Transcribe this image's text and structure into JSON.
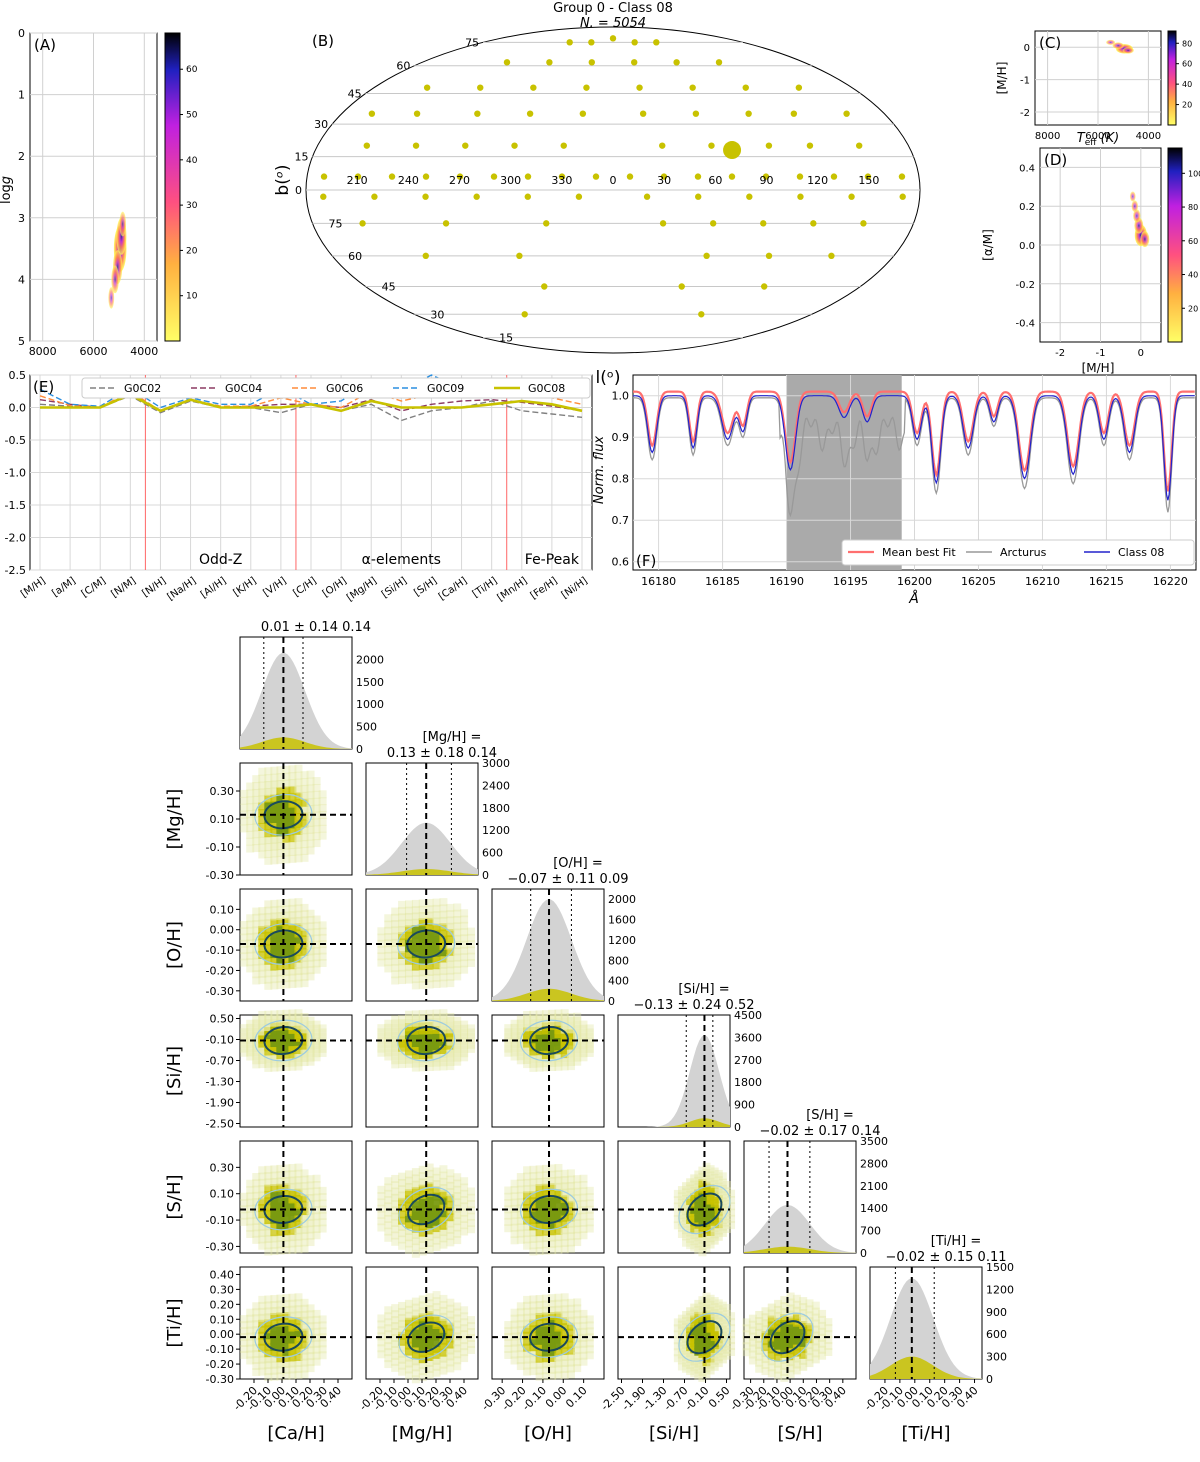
{
  "figure_title": {
    "line1": "Group 0 - Class 08",
    "line2": "N. = 5054"
  },
  "colors": {
    "class": "#c8c200",
    "class_light": "#e4e8a8",
    "gray_hist": "#d3d3d3",
    "contour_dark": "#1a4a5c",
    "contour_light": "#9ccbe0",
    "red_line": "#ff6f6f",
    "blue_line": "#2222cc",
    "gray_line": "#999999",
    "shade": "#aaaaaa"
  },
  "chart_data": [
    {
      "panel": "A",
      "type": "heatmap",
      "xlabel": "T_eff (K)",
      "ylabel": "logg",
      "xlim": [
        8500,
        3500
      ],
      "ylim": [
        5,
        0
      ],
      "xticks": [
        8000,
        6000,
        4000
      ],
      "yticks": [
        0,
        1,
        2,
        3,
        4,
        5
      ],
      "colorbar_ticks": [
        10,
        20,
        30,
        40,
        50,
        60
      ],
      "points": [
        [
          4950,
          3.5,
          1
        ],
        [
          4900,
          3.3,
          0.7
        ],
        [
          5050,
          3.8,
          0.6
        ],
        [
          5150,
          4.0,
          0.4
        ],
        [
          5300,
          4.3,
          0.2
        ],
        [
          4850,
          3.1,
          0.3
        ]
      ],
      "grid": true
    },
    {
      "panel": "B",
      "type": "scatter",
      "projection": "mollweide",
      "xlabel": "l(o)",
      "ylabel": "b(o)",
      "lon_labels": [
        "150",
        "120",
        "90",
        "60",
        "30",
        "0",
        "330",
        "300",
        "270",
        "240",
        "210"
      ],
      "lat_labels_north": [
        "75",
        "60",
        "45",
        "30",
        "15",
        "0"
      ],
      "lat_labels_south": [
        "75",
        "60",
        "45",
        "30",
        "15"
      ],
      "fields": [
        [
          60,
          75
        ],
        [
          30,
          75
        ],
        [
          0,
          78
        ],
        [
          -30,
          75
        ],
        [
          -60,
          75
        ],
        [
          100,
          62
        ],
        [
          60,
          62
        ],
        [
          20,
          62
        ],
        [
          -20,
          62
        ],
        [
          -60,
          62
        ],
        [
          -100,
          62
        ],
        [
          140,
          48
        ],
        [
          100,
          48
        ],
        [
          60,
          48
        ],
        [
          20,
          48
        ],
        [
          -20,
          48
        ],
        [
          -60,
          48
        ],
        [
          -100,
          48
        ],
        [
          -140,
          48
        ],
        [
          155,
          35
        ],
        [
          120,
          35
        ],
        [
          90,
          35
        ],
        [
          55,
          35
        ],
        [
          20,
          35
        ],
        [
          -20,
          35
        ],
        [
          -55,
          35
        ],
        [
          -90,
          35
        ],
        [
          -130,
          35
        ],
        [
          -160,
          35
        ],
        [
          150,
          20
        ],
        [
          120,
          20
        ],
        [
          95,
          20
        ],
        [
          60,
          20
        ],
        [
          30,
          20
        ],
        [
          -30,
          20
        ],
        [
          -60,
          20
        ],
        [
          -90,
          20
        ],
        [
          -120,
          20
        ],
        [
          -150,
          20
        ],
        [
          170,
          6
        ],
        [
          150,
          6
        ],
        [
          130,
          6
        ],
        [
          110,
          6
        ],
        [
          90,
          6
        ],
        [
          70,
          6
        ],
        [
          50,
          6
        ],
        [
          30,
          6
        ],
        [
          10,
          6
        ],
        [
          -10,
          6
        ],
        [
          -30,
          6
        ],
        [
          -50,
          6
        ],
        [
          -70,
          6
        ],
        [
          -90,
          6
        ],
        [
          -110,
          6
        ],
        [
          -130,
          6
        ],
        [
          -150,
          6
        ],
        [
          -170,
          6
        ],
        [
          170,
          -3
        ],
        [
          140,
          -3
        ],
        [
          110,
          -3
        ],
        [
          80,
          -3
        ],
        [
          50,
          -3
        ],
        [
          20,
          -3
        ],
        [
          -20,
          -3
        ],
        [
          -50,
          -3
        ],
        [
          -80,
          -3
        ],
        [
          -110,
          -3
        ],
        [
          -140,
          -3
        ],
        [
          -170,
          -3
        ],
        [
          150,
          -15
        ],
        [
          120,
          -15
        ],
        [
          90,
          -15
        ],
        [
          60,
          -15
        ],
        [
          30,
          -15
        ],
        [
          -40,
          -15
        ],
        [
          -100,
          -15
        ],
        [
          -150,
          -15
        ],
        [
          140,
          -30
        ],
        [
          100,
          -30
        ],
        [
          60,
          -30
        ],
        [
          -60,
          -30
        ],
        [
          -120,
          -30
        ],
        [
          110,
          -45
        ],
        [
          50,
          -45
        ],
        [
          -50,
          -45
        ],
        [
          80,
          -60
        ],
        [
          -80,
          -60
        ]
      ],
      "cluster": [
        72,
        18
      ]
    },
    {
      "panel": "C",
      "type": "heatmap",
      "xlabel": "T_eff (K)",
      "ylabel": "[M/H]",
      "xlim": [
        8500,
        3500
      ],
      "ylim": [
        -2.4,
        0.5
      ],
      "xticks": [
        8000,
        6000,
        4000
      ],
      "yticks": [
        0,
        -1,
        -2
      ],
      "colorbar_ticks": [
        20,
        40,
        60,
        80
      ],
      "points": [
        [
          4950,
          -0.05,
          1
        ],
        [
          5200,
          0.05,
          0.5
        ],
        [
          5500,
          0.15,
          0.3
        ],
        [
          4800,
          -0.1,
          0.5
        ]
      ],
      "grid": true
    },
    {
      "panel": "D",
      "type": "heatmap",
      "xlabel": "[M/H]",
      "ylabel": "[α/M]",
      "xlim": [
        -2.5,
        0.5
      ],
      "ylim": [
        -0.5,
        0.5
      ],
      "xticks": [
        -2,
        -1,
        0
      ],
      "yticks": [
        0.4,
        0.2,
        0.0,
        -0.2,
        -0.4
      ],
      "colorbar_ticks": [
        20,
        40,
        60,
        80,
        100
      ],
      "points": [
        [
          0.0,
          0.05,
          1
        ],
        [
          -0.05,
          0.1,
          0.6
        ],
        [
          -0.1,
          0.15,
          0.4
        ],
        [
          -0.15,
          0.2,
          0.3
        ],
        [
          0.1,
          0.03,
          0.6
        ],
        [
          -0.2,
          0.25,
          0.2
        ]
      ],
      "grid": true
    },
    {
      "panel": "E",
      "type": "line",
      "categories": [
        "[M/H]",
        "[a/M]",
        "[C/M]",
        "[N/M]",
        "[N/H]",
        "[Na/H]",
        "[Al/H]",
        "[K/H]",
        "[V/H]",
        "[C/H]",
        "[O/H]",
        "[Mg/H]",
        "[Si/H]",
        "[S/H]",
        "[Ca/H]",
        "[Ti/H]",
        "[Mn/H]",
        "[Fe/H]",
        "[Ni/H]"
      ],
      "ylim": [
        -2.5,
        0.5
      ],
      "yticks": [
        0.5,
        0.0,
        -0.5,
        -1.0,
        -1.5,
        -2.0,
        -2.5
      ],
      "group_labels": [
        "Odd-Z",
        "α-elements",
        "Fe-Peak"
      ],
      "series": [
        {
          "name": "G0C02",
          "values": [
            0.05,
            0.02,
            0.0,
            0.18,
            -0.08,
            0.1,
            0.0,
            0.0,
            -0.08,
            0.05,
            -0.05,
            0.05,
            -0.2,
            -0.05,
            0.0,
            0.1,
            -0.05,
            -0.1,
            -0.15
          ],
          "color": "#808080"
        },
        {
          "name": "G0C04",
          "values": [
            0.12,
            0.05,
            0.0,
            0.22,
            -0.05,
            0.12,
            0.0,
            0.02,
            0.05,
            0.05,
            0.0,
            0.12,
            -0.05,
            0.05,
            0.1,
            0.12,
            0.08,
            0.02,
            -0.05
          ],
          "color": "#8b3a62"
        },
        {
          "name": "G0C06",
          "values": [
            0.18,
            0.03,
            0.0,
            0.25,
            -0.05,
            0.12,
            0.02,
            0.02,
            0.15,
            0.05,
            0.0,
            0.25,
            0.1,
            0.2,
            0.15,
            0.15,
            0.2,
            0.15,
            0.05
          ],
          "color": "#ff8c3a"
        },
        {
          "name": "G0C09",
          "values": [
            0.28,
            0.05,
            0.02,
            0.3,
            0.0,
            0.15,
            0.05,
            0.05,
            0.3,
            0.05,
            0.1,
            0.4,
            0.25,
            0.5,
            0.3,
            0.25,
            0.3,
            0.25,
            0.15
          ],
          "color": "#2b8fe0"
        },
        {
          "name": "G0C08",
          "values": [
            0.0,
            0.0,
            0.0,
            0.2,
            -0.05,
            0.12,
            0.0,
            0.0,
            0.0,
            0.05,
            -0.05,
            0.1,
            0.0,
            0.0,
            0.0,
            0.05,
            0.1,
            0.05,
            -0.05
          ],
          "color": "#c8c200"
        }
      ]
    },
    {
      "panel": "F",
      "type": "line",
      "xlabel": "Å",
      "ylabel": "Norm. flux",
      "xlim": [
        16178,
        16222
      ],
      "ylim": [
        0.58,
        1.05
      ],
      "xticks": [
        16180,
        16185,
        16190,
        16195,
        16200,
        16205,
        16210,
        16215,
        16220
      ],
      "yticks": [
        1.0,
        0.9,
        0.8,
        0.7,
        0.6
      ],
      "shaded_range": [
        16190,
        16199
      ],
      "legend_loc": "lower right",
      "series": [
        {
          "name": "Mean best Fit"
        },
        {
          "name": "Arcturus"
        },
        {
          "name": "Class 08"
        }
      ]
    },
    {
      "panel": "corner",
      "type": "scatter",
      "variables": [
        {
          "label": "[Ca/H]",
          "median": 0.01,
          "err_plus": 0.14,
          "err_minus": 0.14,
          "lo": -0.3,
          "hi": 0.5,
          "ticks": [
            -0.2,
            -0.1,
            0.0,
            0.1,
            0.2,
            0.3,
            0.4
          ],
          "tick_labels": [
            "-0.20",
            "-0.10",
            "0.00",
            "0.10",
            "0.20",
            "0.30",
            "0.40"
          ],
          "hist_ticks": [
            500,
            1000,
            1500,
            2000
          ],
          "hist_max": 2500,
          "gray_peak": 2150,
          "class_peak": 260,
          "title_line1": "",
          "title_line2": "0.01 ± 0.14 0.14"
        },
        {
          "label": "[Mg/H]",
          "median": 0.13,
          "err_plus": 0.18,
          "err_minus": 0.14,
          "lo": -0.3,
          "hi": 0.5,
          "ticks": [
            -0.2,
            -0.1,
            0.0,
            0.1,
            0.2,
            0.3,
            0.4
          ],
          "tick_labels": [
            "-0.20",
            "-0.10",
            "0.00",
            "0.10",
            "0.20",
            "0.30",
            "0.40"
          ],
          "axis_ticks": [
            -0.3,
            -0.1,
            0.1,
            0.3
          ],
          "axis_tick_labels": [
            "-0.30",
            "-0.10",
            "0.10",
            "0.30"
          ],
          "hist_ticks": [
            600,
            1200,
            1800,
            2400,
            3000
          ],
          "hist_max": 3000,
          "gray_peak": 1400,
          "class_peak": 160,
          "title_line1": "[Mg/H] =",
          "title_line2": "0.13 ± 0.18 0.14"
        },
        {
          "label": "[O/H]",
          "median": -0.07,
          "err_plus": 0.11,
          "err_minus": 0.09,
          "lo": -0.35,
          "hi": 0.2,
          "ticks": [
            -0.3,
            -0.2,
            -0.1,
            0.0,
            0.1
          ],
          "tick_labels": [
            "-0.30",
            "-0.20",
            "-0.10",
            "0.00",
            "0.10"
          ],
          "axis_ticks": [
            0.1,
            0.0,
            -0.1,
            -0.2,
            -0.3
          ],
          "axis_tick_labels": [
            "0.10",
            "0.00",
            "-0.10",
            "-0.20",
            "-0.30"
          ],
          "hist_ticks": [
            400,
            800,
            1200,
            1600,
            2000
          ],
          "hist_max": 2200,
          "gray_peak": 2000,
          "class_peak": 240,
          "title_line1": "[O/H] =",
          "title_line2": "−0.07 ± 0.11 0.09"
        },
        {
          "label": "[Si/H]",
          "median": -0.13,
          "err_plus": 0.24,
          "err_minus": 0.52,
          "lo": -2.6,
          "hi": 0.6,
          "ticks": [
            -2.5,
            -1.9,
            -1.3,
            -0.7,
            -0.1,
            0.5
          ],
          "tick_labels": [
            "-2.50",
            "-1.90",
            "-1.30",
            "-0.70",
            "-0.10",
            "0.50"
          ],
          "axis_ticks": [
            0.5,
            -0.1,
            -0.7,
            -1.3,
            -1.9,
            -2.5
          ],
          "axis_tick_labels": [
            "0.50",
            "-0.10",
            "-0.70",
            "-1.30",
            "-1.90",
            "-2.50"
          ],
          "hist_ticks": [
            900,
            1800,
            2700,
            3600,
            4500
          ],
          "hist_max": 4500,
          "gray_peak": 3700,
          "class_peak": 350,
          "title_line1": "[Si/H] =",
          "title_line2": "−0.13 ± 0.24 0.52"
        },
        {
          "label": "[S/H]",
          "median": -0.02,
          "err_plus": 0.17,
          "err_minus": 0.14,
          "lo": -0.35,
          "hi": 0.5,
          "ticks": [
            -0.3,
            -0.2,
            -0.1,
            0.0,
            0.1,
            0.2,
            0.3,
            0.4
          ],
          "tick_labels": [
            "-0.30",
            "-0.20",
            "-0.10",
            "0.00",
            "0.10",
            "0.20",
            "0.30",
            "0.40"
          ],
          "axis_ticks": [
            0.3,
            0.1,
            -0.1,
            -0.3
          ],
          "axis_tick_labels": [
            "0.30",
            "0.10",
            "-0.10",
            "-0.30"
          ],
          "hist_ticks": [
            700,
            1400,
            2100,
            2800,
            3500
          ],
          "hist_max": 3500,
          "gray_peak": 1500,
          "class_peak": 200,
          "title_line1": "[S/H] =",
          "title_line2": "−0.02 ± 0.17 0.14"
        },
        {
          "label": "[Ti/H]",
          "median": -0.02,
          "err_plus": 0.15,
          "err_minus": 0.11,
          "lo": -0.3,
          "hi": 0.45,
          "ticks": [
            -0.2,
            -0.1,
            0.0,
            0.1,
            0.2,
            0.3,
            0.4
          ],
          "tick_labels": [
            "-0.20",
            "-0.10",
            "0.00",
            "0.10",
            "0.20",
            "0.30",
            "0.40"
          ],
          "axis_ticks": [
            0.4,
            0.3,
            0.2,
            0.1,
            0.0,
            -0.1,
            -0.2,
            -0.3
          ],
          "axis_tick_labels": [
            "0.40",
            "0.30",
            "0.20",
            "0.10",
            "0.00",
            "-0.10",
            "-0.20",
            "-0.30"
          ],
          "hist_ticks": [
            300,
            600,
            900,
            1200,
            1500
          ],
          "hist_max": 1500,
          "gray_peak": 1350,
          "class_peak": 300,
          "title_line1": "[Ti/H] =",
          "title_line2": "−0.02 ± 0.15 0.11"
        }
      ]
    }
  ]
}
